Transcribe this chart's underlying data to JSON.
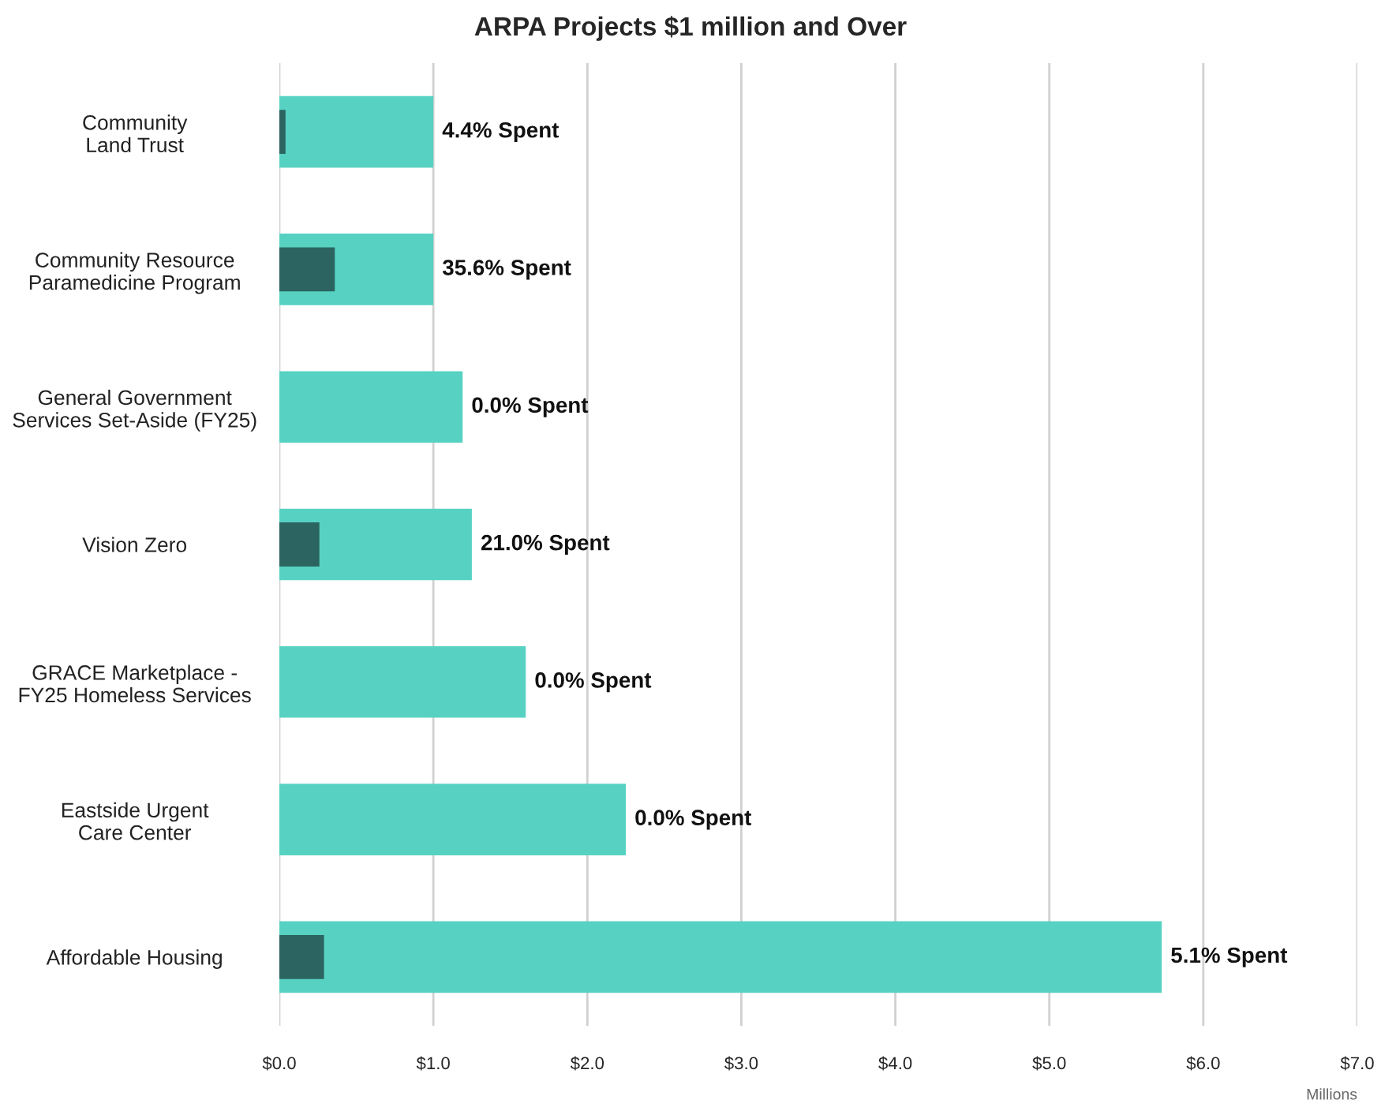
{
  "chart_data": {
    "type": "bar",
    "orientation": "horizontal",
    "title": "ARPA Projects $1 million and Over",
    "xlabel": "Millions",
    "categories": [
      "Community Land Trust",
      "Community Resource Paramedicine Program",
      "General Government Services Set-Aside (FY25)",
      "Vision Zero",
      "GRACE Marketplace - FY25 Homeless Services",
      "Eastside Urgent Care Center",
      "Affordable Housing"
    ],
    "series": [
      {
        "color": "#57d2c2",
        "values": [
          1.0,
          1.0,
          1.19,
          1.25,
          1.6,
          2.25,
          5.73
        ]
      },
      {
        "color": "#2b6460",
        "values": [
          0.04,
          0.36,
          0.0,
          0.26,
          0.0,
          0.0,
          0.29
        ]
      }
    ],
    "xlim": [
      0,
      7
    ],
    "xticks": [
      {
        "value": 0,
        "label": "$0.0"
      },
      {
        "value": 1,
        "label": "$1.0"
      },
      {
        "value": 2,
        "label": "$2.0"
      },
      {
        "value": 3,
        "label": "$3.0"
      },
      {
        "value": 4,
        "label": "$4.0"
      },
      {
        "value": 5,
        "label": "$5.0"
      },
      {
        "value": 6,
        "label": "$6.0"
      },
      {
        "value": 7,
        "label": "$7.0"
      }
    ],
    "grid": "x",
    "annotations": [
      {
        "text": "4.4% Spent",
        "x": 1.0,
        "y": "Community Land Trust"
      },
      {
        "text": "35.6% Spent",
        "x": 1.0,
        "y": "Community Resource Paramedicine Program"
      },
      {
        "text": "0.0% Spent",
        "x": 1.19,
        "y": "General Government Services Set-Aside (FY25)"
      },
      {
        "text": "21.0% Spent",
        "x": 1.25,
        "y": "Vision Zero"
      },
      {
        "text": "0.0% Spent",
        "x": 1.6,
        "y": "GRACE Marketplace - FY25 Homeless Services"
      },
      {
        "text": "0.0% Spent",
        "x": 2.25,
        "y": "Eastside Urgent Care Center"
      },
      {
        "text": "5.1% Spent",
        "x": 5.73,
        "y": "Affordable Housing"
      }
    ]
  }
}
